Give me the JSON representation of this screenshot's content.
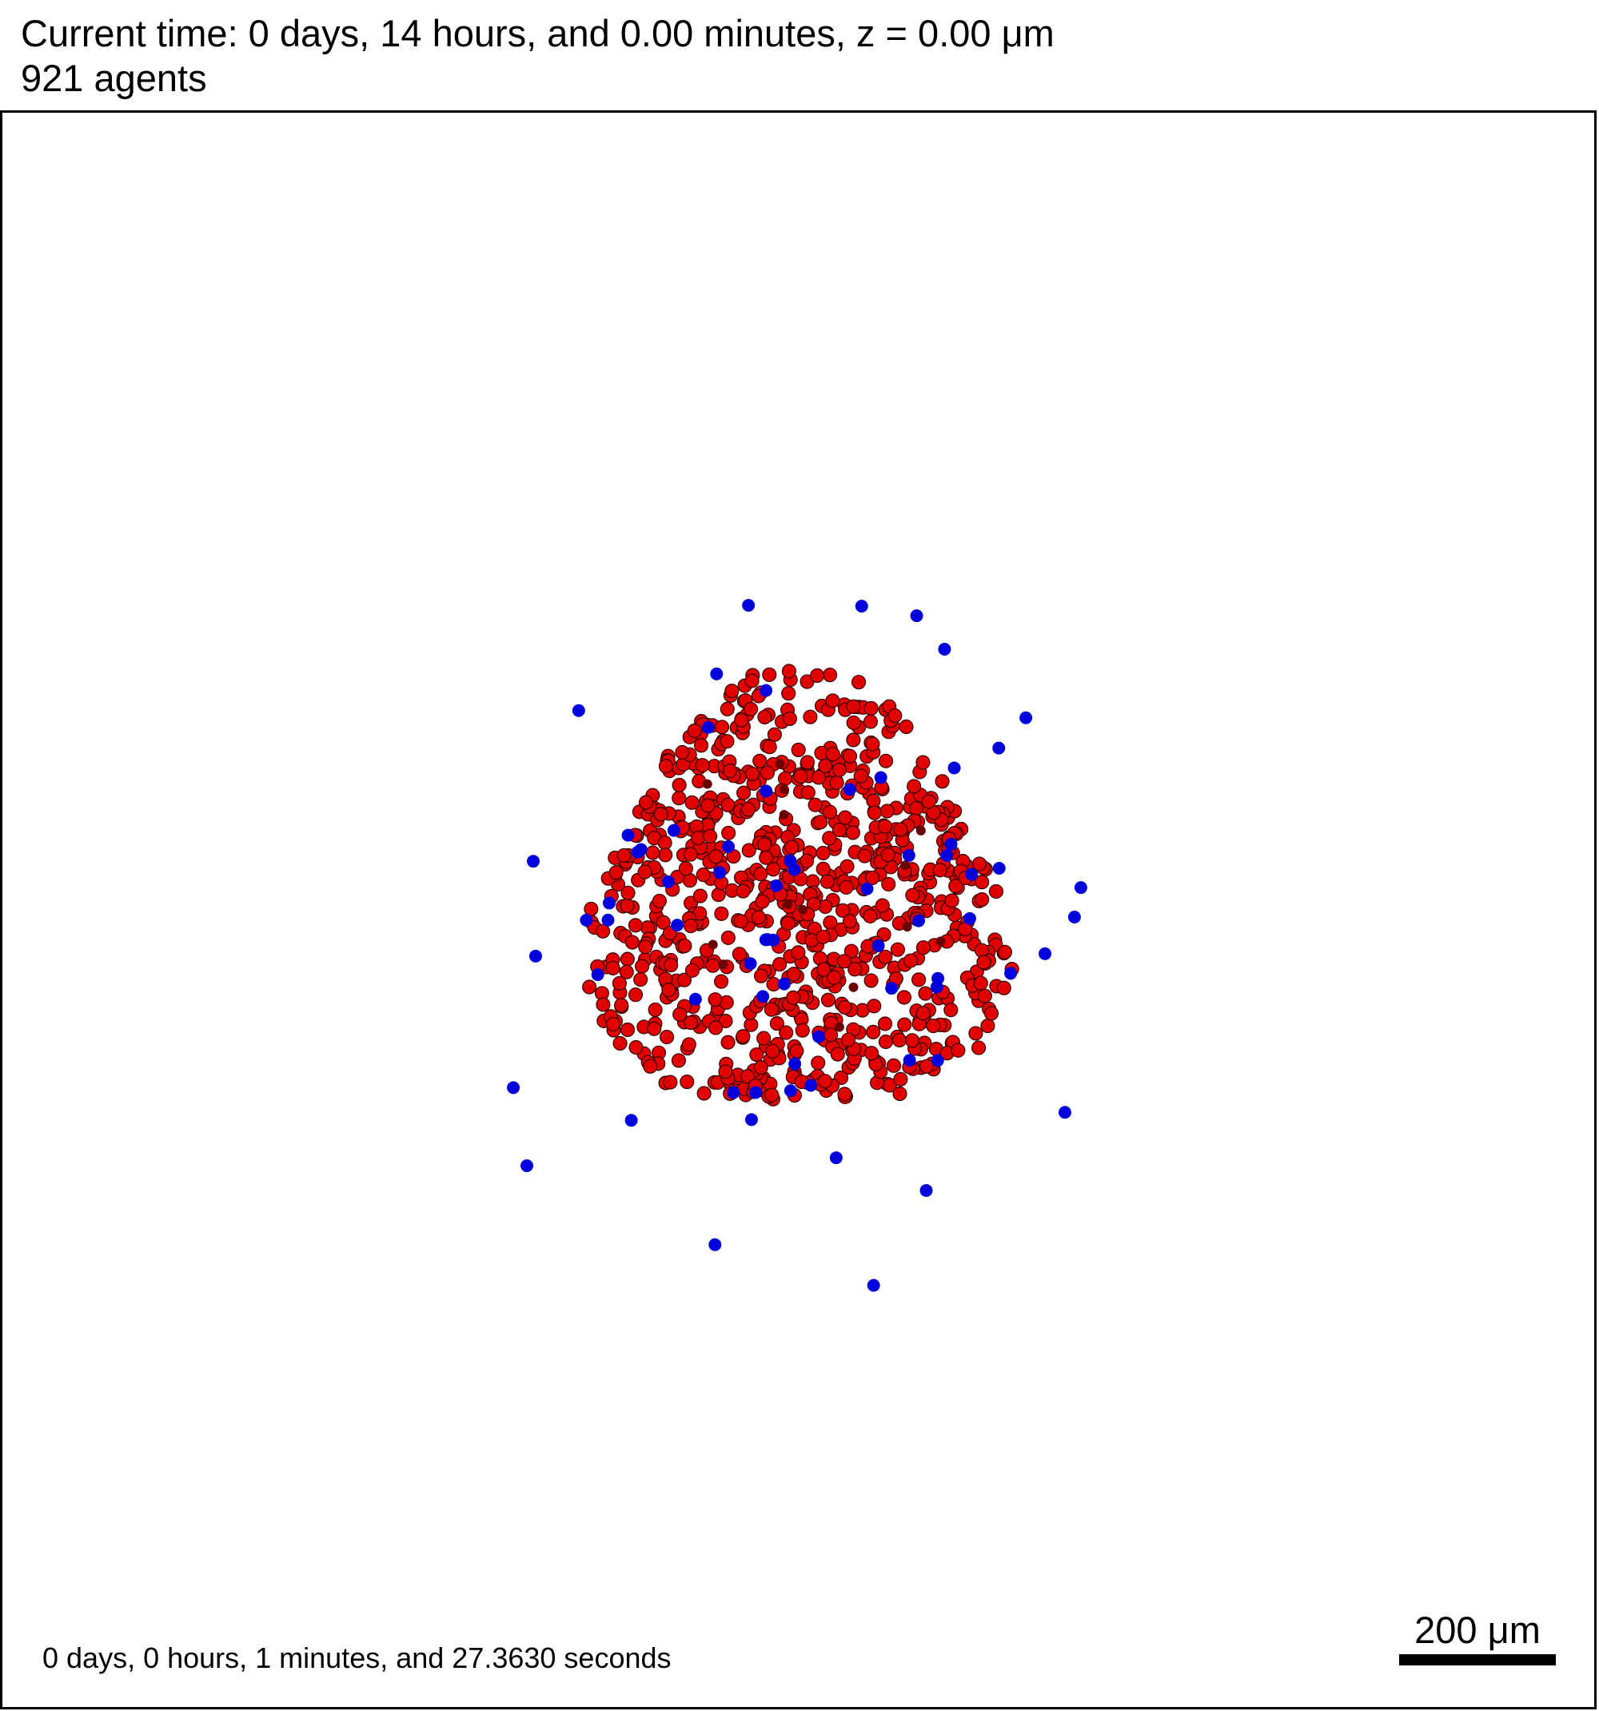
{
  "header": {
    "time_line": "Current time: 0 days, 14 hours, and 0.00 minutes, z = 0.00 μm",
    "agents_line": "921 agents"
  },
  "footer": {
    "elapsed": "0 days, 0 hours, 1 minutes, and 27.3630 seconds",
    "scale_label": "200 μm"
  },
  "colors": {
    "tumor_cell": "#e00000",
    "immune_cell": "#0000dd",
    "dead_cell": "#6a0000",
    "cell_outline": "#330000"
  }
}
